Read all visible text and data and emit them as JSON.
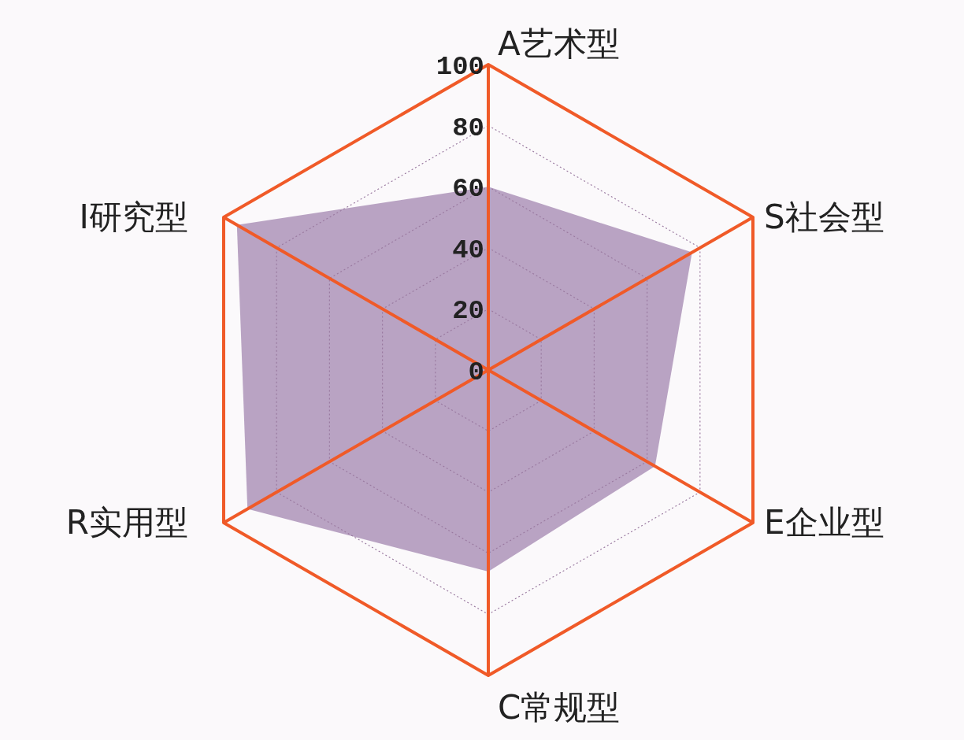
{
  "chart_data": {
    "type": "radar",
    "categories": [
      "A艺术型",
      "S社会型",
      "E企业型",
      "C常规型",
      "R实用型",
      "I研究型"
    ],
    "series": [
      {
        "color": "#b9a3c3",
        "values": [
          60,
          77,
          63,
          66,
          91,
          95
        ]
      }
    ],
    "ylim": [
      0,
      100
    ],
    "yticks": [
      0,
      20,
      40,
      60,
      80,
      100
    ],
    "grid": true
  }
}
